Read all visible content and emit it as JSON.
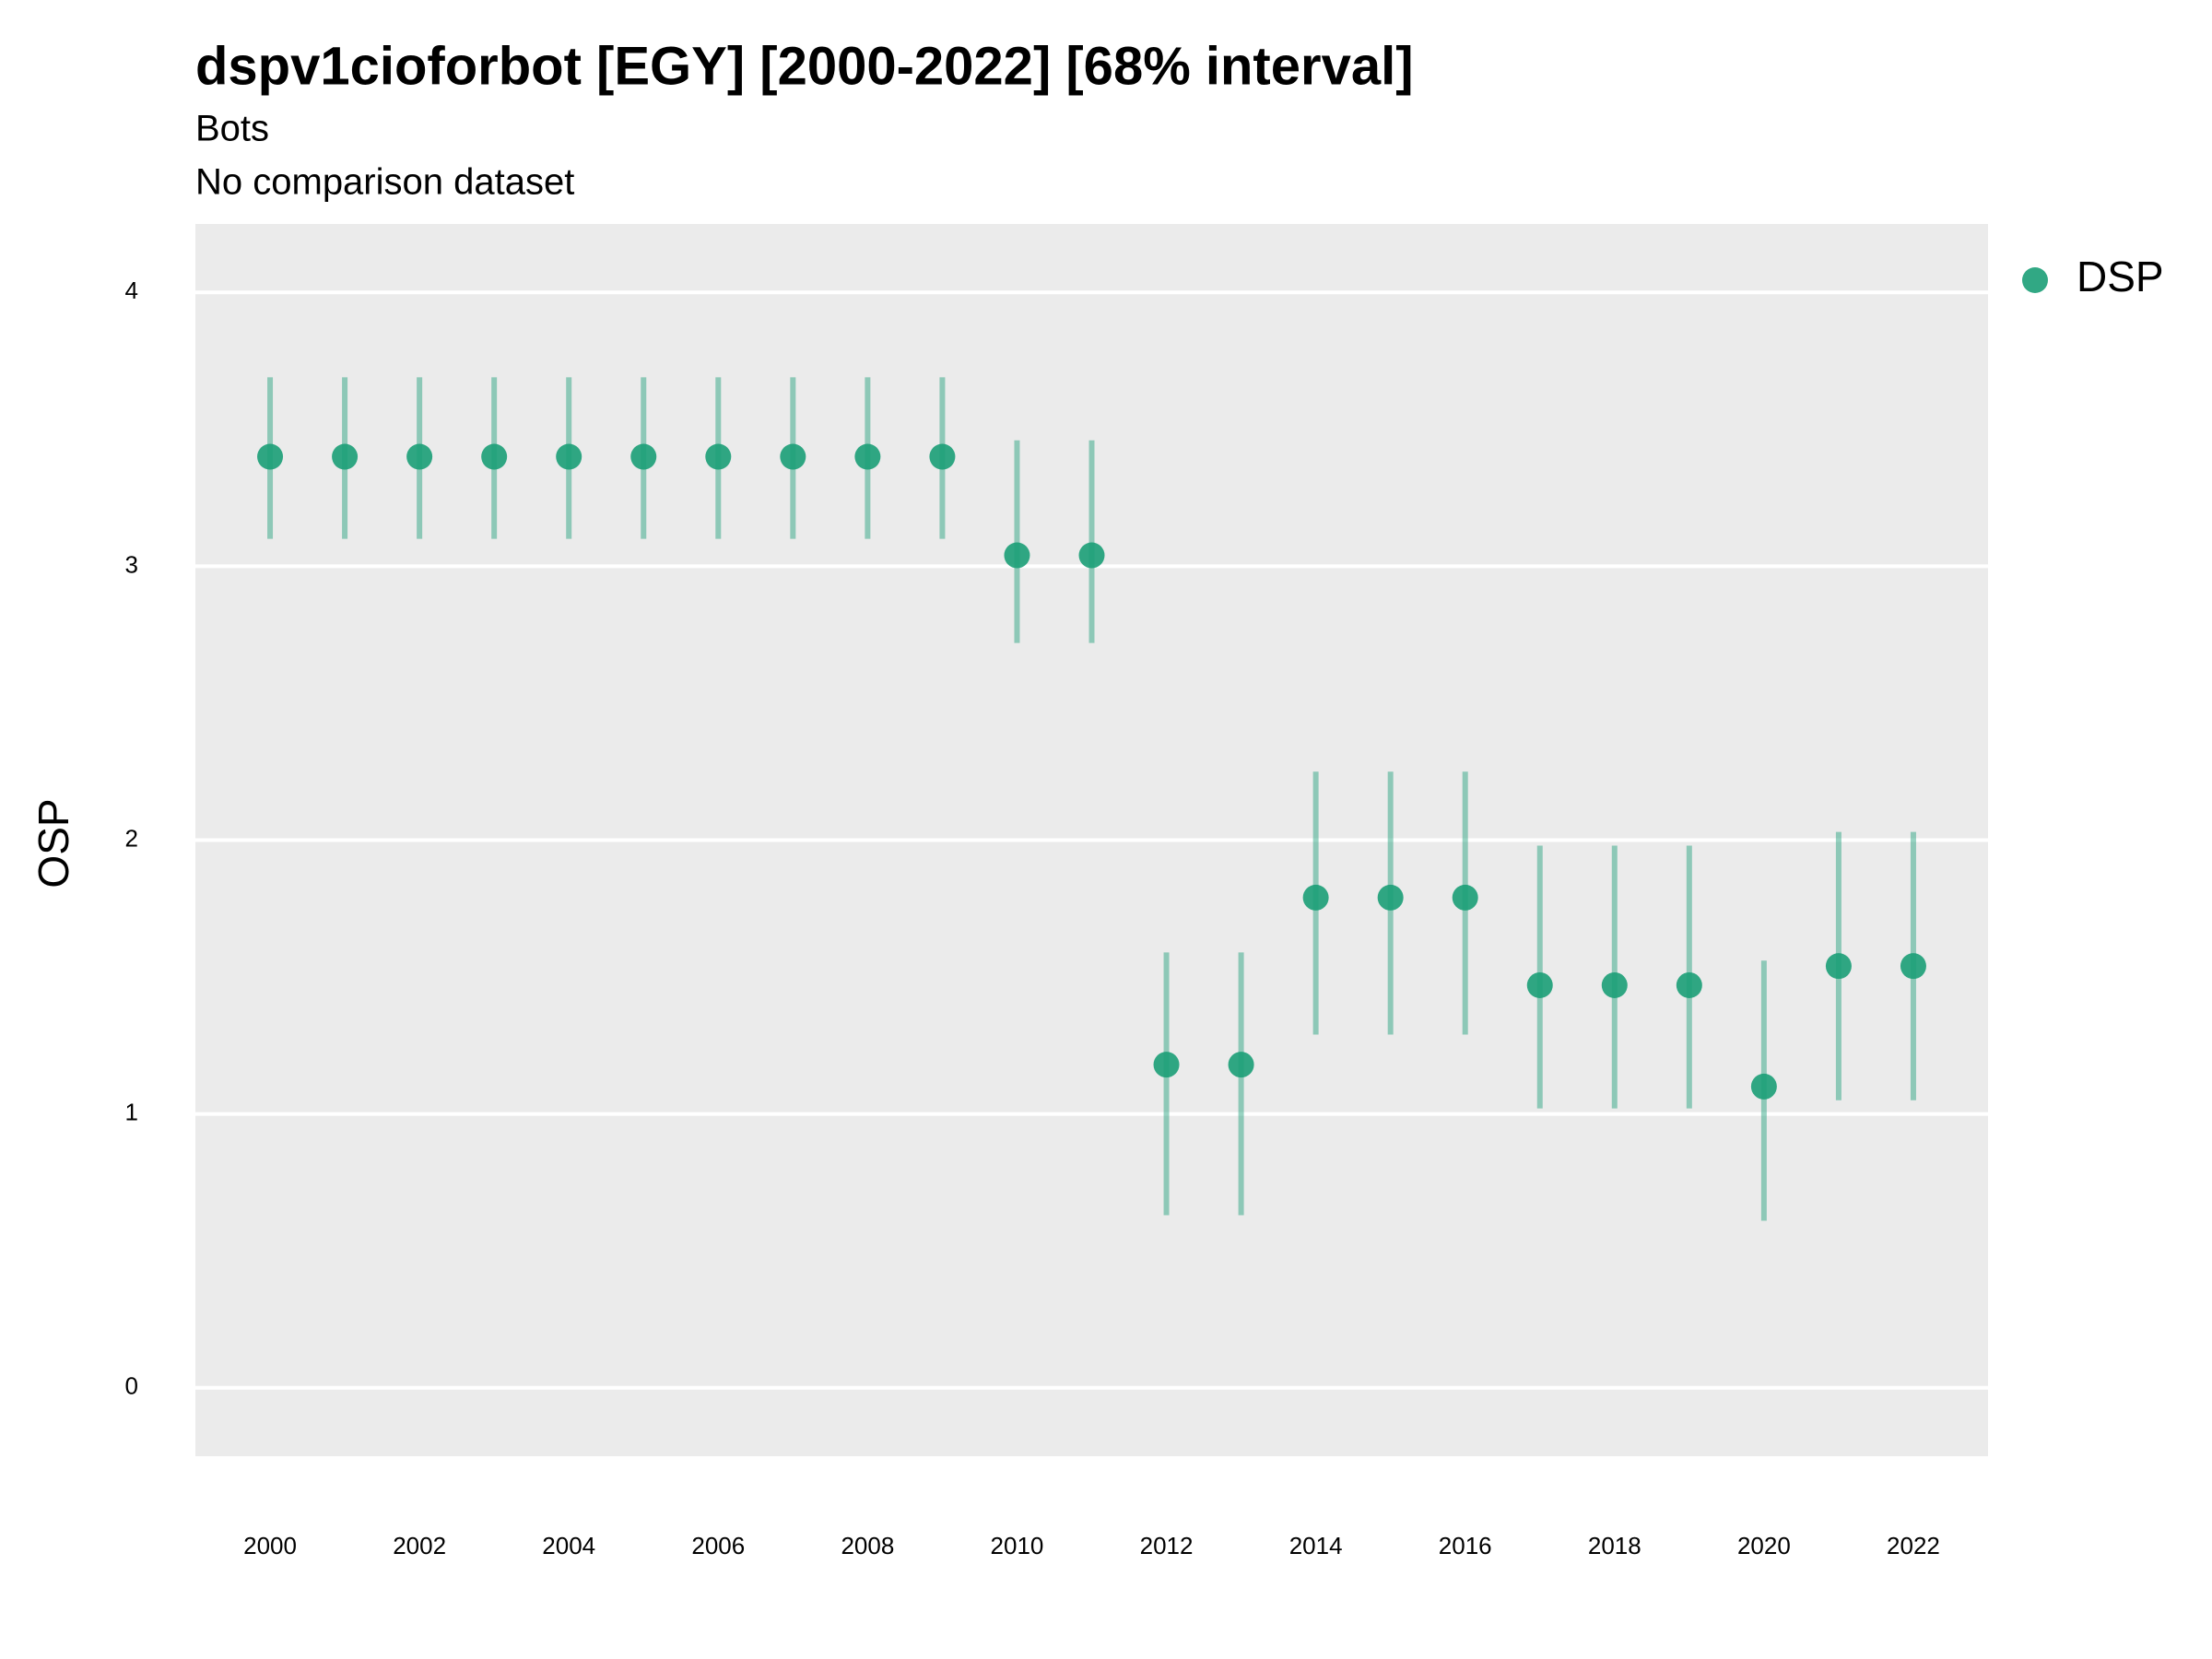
{
  "chart_data": {
    "type": "pointrange",
    "title": "dspv1cioforbot [EGY] [2000-2022] [68% interval]",
    "subtitle": "Bots",
    "caption_top": "No comparison dataset",
    "y_label": "OSP",
    "x": [
      2000,
      2001,
      2002,
      2003,
      2004,
      2005,
      2006,
      2007,
      2008,
      2009,
      2010,
      2011,
      2012,
      2013,
      2014,
      2015,
      2016,
      2017,
      2018,
      2019,
      2020,
      2021,
      2022
    ],
    "series": [
      {
        "name": "DSP",
        "color": "#1b9e77",
        "values": [
          3.4,
          3.4,
          3.4,
          3.4,
          3.4,
          3.4,
          3.4,
          3.4,
          3.4,
          3.4,
          3.04,
          3.04,
          1.18,
          1.18,
          1.79,
          1.79,
          1.79,
          1.47,
          1.47,
          1.47,
          1.1,
          1.54,
          1.54
        ],
        "lower": [
          3.1,
          3.1,
          3.1,
          3.1,
          3.1,
          3.1,
          3.1,
          3.1,
          3.1,
          3.1,
          2.72,
          2.72,
          0.63,
          0.63,
          1.29,
          1.29,
          1.29,
          1.02,
          1.02,
          1.02,
          0.61,
          1.05,
          1.05
        ],
        "upper": [
          3.69,
          3.69,
          3.69,
          3.69,
          3.69,
          3.69,
          3.69,
          3.69,
          3.69,
          3.69,
          3.46,
          3.46,
          1.59,
          1.59,
          2.25,
          2.25,
          2.25,
          1.98,
          1.98,
          1.98,
          1.56,
          2.03,
          2.03
        ]
      }
    ],
    "xlim": [
      1999,
      2023
    ],
    "xticks": [
      2000,
      2002,
      2004,
      2006,
      2008,
      2010,
      2012,
      2014,
      2016,
      2018,
      2020,
      2022
    ],
    "ylim": [
      -0.25,
      4.25
    ],
    "yticks": [
      0,
      1,
      2,
      3,
      4
    ],
    "grid": true,
    "legend": "right"
  }
}
